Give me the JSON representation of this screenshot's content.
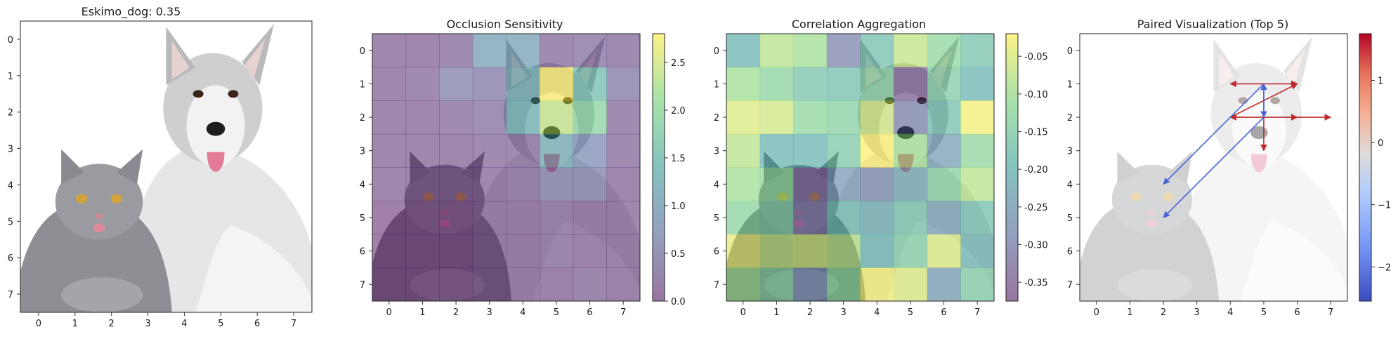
{
  "panels": [
    {
      "title": "Eskimo_dog: 0.35"
    },
    {
      "title": "Occlusion Sensitivity"
    },
    {
      "title": "Correlation Aggregation"
    },
    {
      "title": "Paired Visualization (Top 5)"
    }
  ],
  "image_grid": {
    "xticks": [
      "0",
      "1",
      "2",
      "3",
      "4",
      "5",
      "6",
      "7"
    ],
    "yticks": [
      "0",
      "1",
      "2",
      "3",
      "4",
      "5",
      "6",
      "7"
    ]
  },
  "colors": {
    "viridis": [
      "#440154",
      "#3b528b",
      "#21918c",
      "#5ec962",
      "#fde725"
    ],
    "coolwarm": [
      "#3b4cc0",
      "#7396f5",
      "#b0cbfc",
      "#dddcdc",
      "#f5b094",
      "#e7745b",
      "#b40426"
    ]
  },
  "chart_data": [
    {
      "type": "image",
      "title": "Eskimo_dog: 0.35",
      "xlim": [
        -0.5,
        7.5
      ],
      "ylim": [
        7.5,
        -0.5
      ],
      "xticks": [
        0,
        1,
        2,
        3,
        4,
        5,
        6,
        7
      ],
      "yticks": [
        0,
        1,
        2,
        3,
        4,
        5,
        6,
        7
      ]
    },
    {
      "type": "heatmap",
      "title": "Occlusion Sensitivity",
      "colormap": "viridis",
      "overlay_opacity": 0.5,
      "values": [
        [
          0.1,
          0.1,
          0.2,
          1.0,
          1.0,
          0.2,
          0.3,
          0.2
        ],
        [
          0.1,
          0.2,
          0.5,
          0.4,
          1.2,
          2.8,
          1.5,
          0.4
        ],
        [
          0.1,
          0.1,
          0.2,
          0.3,
          1.3,
          2.4,
          1.9,
          0.2
        ],
        [
          0.1,
          0.1,
          0.1,
          0.2,
          0.2,
          1.2,
          0.7,
          0.2
        ],
        [
          0.1,
          0.1,
          0.1,
          0.1,
          0.2,
          0.5,
          0.5,
          0.1
        ],
        [
          0.0,
          0.0,
          0.0,
          0.1,
          0.1,
          0.2,
          0.1,
          0.1
        ],
        [
          0.0,
          0.0,
          0.0,
          0.1,
          0.1,
          0.2,
          0.1,
          0.1
        ],
        [
          0.0,
          0.0,
          0.0,
          0.1,
          0.1,
          0.1,
          0.2,
          0.1
        ]
      ],
      "colorbar": {
        "min": 0.0,
        "max": 2.8,
        "ticks": [
          "0.0",
          "0.5",
          "1.0",
          "1.5",
          "2.0",
          "2.5"
        ],
        "tick_values": [
          0.0,
          0.5,
          1.0,
          1.5,
          2.0,
          2.5
        ]
      },
      "xticks": [
        0,
        1,
        2,
        3,
        4,
        5,
        6,
        7
      ],
      "yticks": [
        0,
        1,
        2,
        3,
        4,
        5,
        6,
        7
      ]
    },
    {
      "type": "heatmap",
      "title": "Correlation Aggregation",
      "colormap": "viridis",
      "overlay_opacity": 0.5,
      "values": [
        [
          -0.2,
          -0.08,
          -0.1,
          -0.3,
          -0.18,
          -0.07,
          -0.12,
          -0.17
        ],
        [
          -0.1,
          -0.13,
          -0.17,
          -0.18,
          -0.14,
          -0.35,
          -0.15,
          -0.2
        ],
        [
          -0.05,
          -0.06,
          -0.12,
          -0.14,
          -0.06,
          -0.3,
          -0.18,
          -0.03
        ],
        [
          -0.08,
          -0.2,
          -0.2,
          -0.16,
          -0.02,
          -0.1,
          -0.25,
          -0.12
        ],
        [
          -0.1,
          -0.12,
          -0.34,
          -0.26,
          -0.29,
          -0.23,
          -0.14,
          -0.08
        ],
        [
          -0.13,
          -0.15,
          -0.32,
          -0.19,
          -0.22,
          -0.17,
          -0.25,
          -0.18
        ],
        [
          -0.04,
          -0.07,
          -0.06,
          -0.08,
          -0.2,
          -0.15,
          -0.05,
          -0.21
        ],
        [
          -0.1,
          -0.14,
          -0.28,
          -0.12,
          -0.03,
          -0.05,
          -0.25,
          -0.15
        ]
      ],
      "colorbar": {
        "min": -0.375,
        "max": -0.02,
        "ticks": [
          "-0.05",
          "-0.10",
          "-0.15",
          "-0.20",
          "-0.25",
          "-0.30",
          "-0.35"
        ],
        "tick_values": [
          -0.05,
          -0.1,
          -0.15,
          -0.2,
          -0.25,
          -0.3,
          -0.35
        ]
      },
      "xticks": [
        0,
        1,
        2,
        3,
        4,
        5,
        6,
        7
      ],
      "yticks": [
        0,
        1,
        2,
        3,
        4,
        5,
        6,
        7
      ]
    },
    {
      "type": "arrows",
      "title": "Paired Visualization (Top 5)",
      "arrows": [
        {
          "from": [
            5,
            1
          ],
          "to": [
            4,
            1
          ],
          "sign": "positive"
        },
        {
          "from": [
            5,
            1
          ],
          "to": [
            6,
            1
          ],
          "sign": "positive"
        },
        {
          "from": [
            5,
            2
          ],
          "to": [
            4,
            2
          ],
          "sign": "positive"
        },
        {
          "from": [
            5,
            2
          ],
          "to": [
            6,
            2
          ],
          "sign": "positive"
        },
        {
          "from": [
            6,
            2
          ],
          "to": [
            7,
            2
          ],
          "sign": "positive"
        },
        {
          "from": [
            5,
            2
          ],
          "to": [
            5,
            3
          ],
          "sign": "positive"
        },
        {
          "from": [
            4,
            2
          ],
          "to": [
            6,
            1
          ],
          "sign": "positive"
        },
        {
          "from": [
            5,
            1
          ],
          "to": [
            2,
            4
          ],
          "sign": "negative"
        },
        {
          "from": [
            5,
            2
          ],
          "to": [
            2,
            5
          ],
          "sign": "negative"
        },
        {
          "from": [
            5,
            2
          ],
          "to": [
            5,
            1
          ],
          "sign": "negative"
        },
        {
          "from": [
            5,
            1
          ],
          "to": [
            5,
            2
          ],
          "sign": "negative"
        }
      ],
      "colormap": "coolwarm",
      "colorbar": {
        "min": -2.55,
        "max": 1.75,
        "ticks": [
          "1",
          "0",
          "−1",
          "−2"
        ],
        "tick_values": [
          1,
          0,
          -1,
          -2
        ]
      },
      "xticks": [
        0,
        1,
        2,
        3,
        4,
        5,
        6,
        7
      ],
      "yticks": [
        0,
        1,
        2,
        3,
        4,
        5,
        6,
        7
      ]
    }
  ]
}
